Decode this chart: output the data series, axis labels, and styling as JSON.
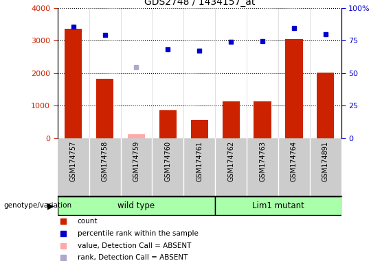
{
  "title": "GDS2748 / 1434157_at",
  "samples": [
    "GSM174757",
    "GSM174758",
    "GSM174759",
    "GSM174760",
    "GSM174761",
    "GSM174762",
    "GSM174763",
    "GSM174764",
    "GSM174891"
  ],
  "count_values": [
    3350,
    1820,
    null,
    850,
    570,
    1130,
    1130,
    3050,
    2020
  ],
  "count_absent": [
    null,
    null,
    120,
    null,
    null,
    null,
    null,
    null,
    null
  ],
  "rank_values": [
    85.5,
    79.25,
    null,
    68.0,
    67.25,
    74.0,
    74.5,
    84.25,
    80.0
  ],
  "rank_absent": [
    null,
    null,
    54.5,
    null,
    null,
    null,
    null,
    null,
    null
  ],
  "ylim_left": [
    0,
    4000
  ],
  "ylim_right": [
    0,
    100
  ],
  "yticks_left": [
    0,
    1000,
    2000,
    3000,
    4000
  ],
  "ytick_labels_left": [
    "0",
    "1000",
    "2000",
    "3000",
    "4000"
  ],
  "yticks_right": [
    0,
    25,
    50,
    75,
    100
  ],
  "ytick_labels_right": [
    "0",
    "25",
    "50",
    "75",
    "100%"
  ],
  "bar_color": "#cc2200",
  "bar_absent_color": "#ffaaaa",
  "rank_color": "#0000cc",
  "rank_absent_color": "#aaaacc",
  "wild_type_indices": [
    0,
    1,
    2,
    3,
    4
  ],
  "lim1_mutant_indices": [
    5,
    6,
    7,
    8
  ],
  "group_color": "#aaffaa",
  "group_label_wt": "wild type",
  "group_label_lm": "Lim1 mutant",
  "genotype_label": "genotype/variation",
  "legend_items": [
    {
      "label": "count",
      "color": "#cc2200"
    },
    {
      "label": "percentile rank within the sample",
      "color": "#0000cc"
    },
    {
      "label": "value, Detection Call = ABSENT",
      "color": "#ffaaaa"
    },
    {
      "label": "rank, Detection Call = ABSENT",
      "color": "#aaaacc"
    }
  ],
  "bar_width": 0.55,
  "label_area_bg": "#cccccc",
  "plot_bg": "#ffffff"
}
